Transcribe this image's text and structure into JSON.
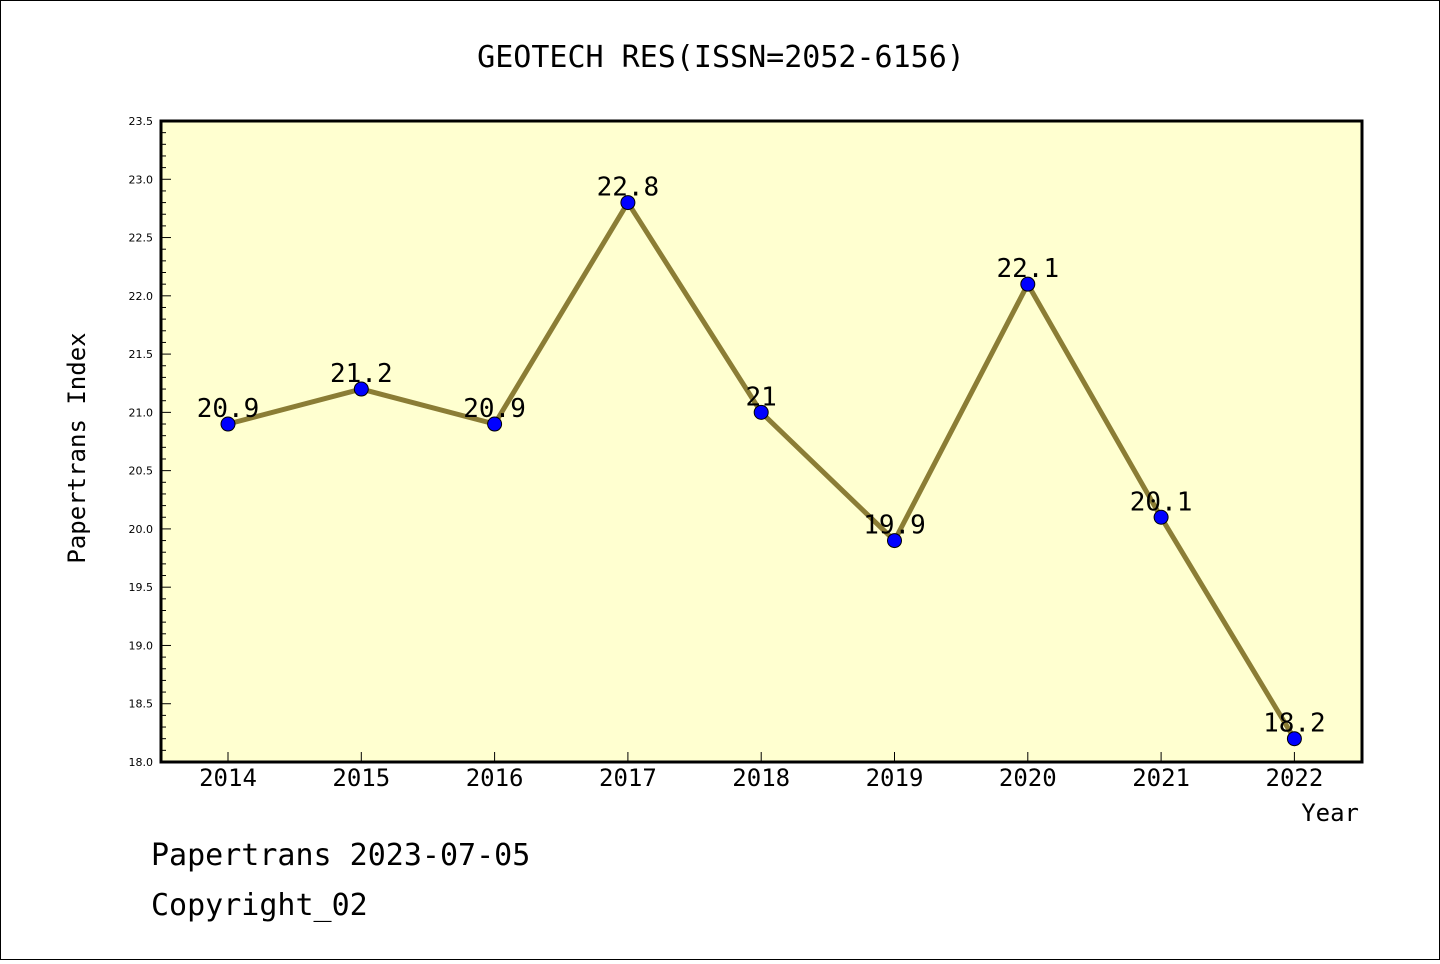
{
  "chart_data": {
    "type": "line",
    "title": "GEOTECH RES(ISSN=2052-6156)",
    "xlabel": "Year",
    "ylabel": "Papertrans Index",
    "categories": [
      "2014",
      "2015",
      "2016",
      "2017",
      "2018",
      "2019",
      "2020",
      "2021",
      "2022"
    ],
    "series": [
      {
        "values": [
          20.9,
          21.2,
          20.9,
          22.8,
          21.0,
          19.9,
          22.1,
          20.1,
          18.2
        ],
        "labels": [
          "20.9",
          "21.2",
          "20.9",
          "22.8",
          "21",
          "19.9",
          "22.1",
          "20.1",
          "18.2"
        ]
      }
    ],
    "ylim": [
      18.0,
      23.5
    ],
    "yticks": [
      "18.0",
      "18.5",
      "19.0",
      "19.5",
      "20.0",
      "20.5",
      "21.0",
      "21.5",
      "22.0",
      "22.5",
      "23.0",
      "23.5"
    ],
    "grid": false,
    "legend": "none",
    "colors": {
      "plot_background": "#ffffd0",
      "line": "#8b7d35",
      "marker": "#0000ff"
    }
  },
  "footer": {
    "line1": "Papertrans 2023-07-05",
    "line2": "Copyright_02"
  }
}
